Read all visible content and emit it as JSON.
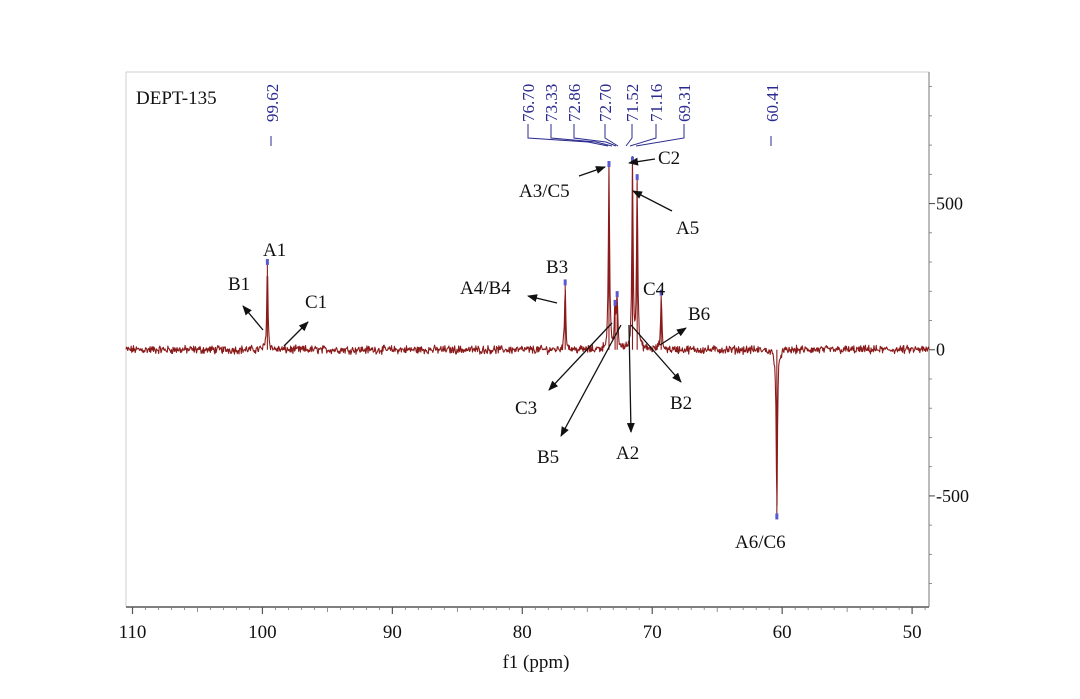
{
  "chart_data": {
    "type": "line",
    "title": "DEPT-135",
    "xlabel": "f1 (ppm)",
    "ylabel": "",
    "xlim": [
      110.5,
      48.7
    ],
    "ylim": [
      -880,
      950
    ],
    "x_ticks": [
      {
        "value": 110,
        "label": "110"
      },
      {
        "value": 100,
        "label": "100"
      },
      {
        "value": 90,
        "label": "90"
      },
      {
        "value": 80,
        "label": "80"
      },
      {
        "value": 70,
        "label": "70"
      },
      {
        "value": 60,
        "label": "60"
      },
      {
        "value": 50,
        "label": "50"
      }
    ],
    "y_ticks": [
      {
        "value": 500,
        "label": "500"
      },
      {
        "value": 0,
        "label": "0"
      },
      {
        "value": -500,
        "label": "-500"
      }
    ],
    "peaks": [
      {
        "ppm": 99.62,
        "intensity": 290,
        "label": "99.62"
      },
      {
        "ppm": 76.7,
        "intensity": 220,
        "label": "76.70"
      },
      {
        "ppm": 73.33,
        "intensity": 625,
        "label": "73.33"
      },
      {
        "ppm": 72.86,
        "intensity": 150,
        "label": "72.86"
      },
      {
        "ppm": 72.7,
        "intensity": 180,
        "label": "72.70"
      },
      {
        "ppm": 71.52,
        "intensity": 640,
        "label": "71.52"
      },
      {
        "ppm": 71.16,
        "intensity": 580,
        "label": "71.16"
      },
      {
        "ppm": 69.31,
        "intensity": 185,
        "label": "69.31"
      },
      {
        "ppm": 60.41,
        "intensity": -560,
        "label": "60.41"
      }
    ],
    "annotations": [
      {
        "text": "A1"
      },
      {
        "text": "B1"
      },
      {
        "text": "C1"
      },
      {
        "text": "A4/B4"
      },
      {
        "text": "B3"
      },
      {
        "text": "A3/C5"
      },
      {
        "text": "C2"
      },
      {
        "text": "A5"
      },
      {
        "text": "C4"
      },
      {
        "text": "B6"
      },
      {
        "text": "C3"
      },
      {
        "text": "B5"
      },
      {
        "text": "A2"
      },
      {
        "text": "B2"
      },
      {
        "text": "A6/C6"
      }
    ],
    "colors": {
      "spectrum": "#8b1a1a",
      "peak_label": "#2b2b8f",
      "axis": "#666666",
      "text": "#111111"
    }
  }
}
